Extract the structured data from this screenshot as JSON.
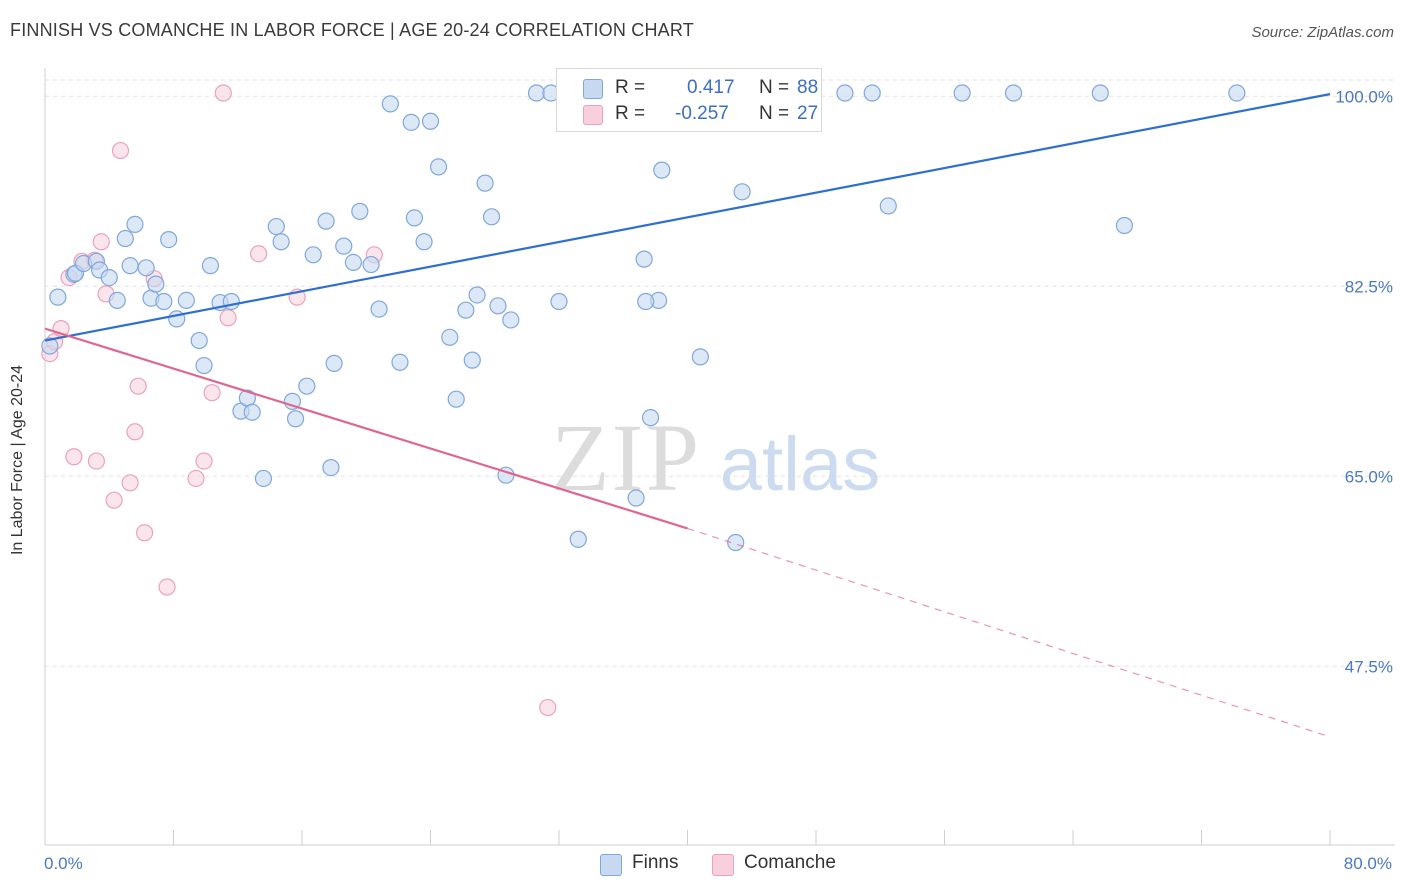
{
  "title": "FINNISH VS COMANCHE IN LABOR FORCE | AGE 20-24 CORRELATION CHART",
  "source": "Source: ZipAtlas.com",
  "watermark": {
    "zip": "ZIP",
    "atlas": "atlas"
  },
  "legend_stats": [
    {
      "r_label": "R =",
      "r_value": "0.417",
      "n_label": "N =",
      "n_value": "88"
    },
    {
      "r_label": "R =",
      "r_value": "-0.257",
      "n_label": "N =",
      "n_value": "27"
    }
  ],
  "bottom_legend": {
    "finns": "Finns",
    "comanche": "Comanche"
  },
  "colors": {
    "finns_fill": "#c6d9f1",
    "finns_stroke": "#7fa7dd",
    "finns_line": "#2e6fd0",
    "comanche_fill": "#f8cfdc",
    "comanche_stroke": "#eba2ba",
    "comanche_line": "#e06690"
  },
  "chart_data": {
    "type": "scatter",
    "title": "FINNISH VS COMANCHE IN LABOR FORCE | AGE 20-24 CORRELATION CHART",
    "xlabel": "",
    "ylabel": "In Labor Force | Age 20-24",
    "xlim": [
      0,
      80
    ],
    "ylim": [
      31.5,
      101.5
    ],
    "x_tick_labels": [
      "0.0%",
      "80.0%"
    ],
    "y_tick_labels": [
      "100.0%",
      "82.5%",
      "65.0%",
      "47.5%"
    ],
    "y_ticks": [
      100.0,
      82.5,
      65.0,
      47.5
    ],
    "grid": "horizontal dashed",
    "legend_placement": "top-center",
    "series": [
      {
        "name": "Finns",
        "points": [
          [
            0.3,
            77.0
          ],
          [
            0.8,
            81.5
          ],
          [
            1.8,
            83.6
          ],
          [
            1.9,
            83.7
          ],
          [
            2.4,
            84.6
          ],
          [
            3.2,
            84.8
          ],
          [
            3.4,
            84.0
          ],
          [
            4.0,
            83.3
          ],
          [
            4.5,
            81.2
          ],
          [
            5.0,
            86.9
          ],
          [
            5.6,
            88.2
          ],
          [
            5.3,
            84.4
          ],
          [
            6.3,
            84.2
          ],
          [
            6.6,
            81.4
          ],
          [
            6.9,
            82.7
          ],
          [
            7.7,
            86.8
          ],
          [
            8.2,
            79.5
          ],
          [
            8.8,
            81.2
          ],
          [
            9.6,
            77.5
          ],
          [
            9.9,
            75.2
          ],
          [
            10.3,
            84.4
          ],
          [
            10.9,
            81.0
          ],
          [
            11.6,
            81.1
          ],
          [
            12.2,
            71.0
          ],
          [
            12.6,
            72.2
          ],
          [
            12.9,
            70.9
          ],
          [
            13.6,
            64.8
          ],
          [
            14.4,
            88.0
          ],
          [
            14.7,
            86.6
          ],
          [
            15.4,
            71.9
          ],
          [
            15.6,
            70.3
          ],
          [
            16.3,
            73.3
          ],
          [
            16.7,
            85.4
          ],
          [
            17.5,
            88.5
          ],
          [
            17.8,
            65.8
          ],
          [
            18.0,
            75.4
          ],
          [
            18.6,
            86.2
          ],
          [
            19.2,
            84.7
          ],
          [
            19.6,
            89.4
          ],
          [
            20.3,
            84.5
          ],
          [
            20.8,
            80.4
          ],
          [
            21.5,
            99.3
          ],
          [
            22.1,
            75.5
          ],
          [
            22.8,
            97.6
          ],
          [
            23.0,
            88.8
          ],
          [
            23.6,
            86.6
          ],
          [
            24.0,
            97.7
          ],
          [
            24.5,
            93.5
          ],
          [
            25.2,
            77.8
          ],
          [
            25.6,
            72.1
          ],
          [
            26.2,
            80.3
          ],
          [
            26.6,
            75.7
          ],
          [
            26.9,
            81.7
          ],
          [
            27.4,
            92.0
          ],
          [
            27.8,
            88.9
          ],
          [
            28.2,
            80.7
          ],
          [
            28.7,
            65.1
          ],
          [
            29.0,
            79.4
          ],
          [
            30.6,
            100.3
          ],
          [
            31.5,
            100.3
          ],
          [
            32.0,
            81.1
          ],
          [
            33.0,
            100.3
          ],
          [
            33.6,
            100.3
          ],
          [
            33.2,
            59.2
          ],
          [
            35.0,
            100.3
          ],
          [
            36.8,
            63.0
          ],
          [
            37.7,
            70.4
          ],
          [
            37.3,
            85.0
          ],
          [
            38.4,
            93.2
          ],
          [
            38.2,
            81.2
          ],
          [
            38.9,
            100.3
          ],
          [
            40.8,
            76.0
          ],
          [
            41.7,
            100.3
          ],
          [
            42.9,
            100.3
          ],
          [
            43.0,
            58.9
          ],
          [
            43.4,
            91.2
          ],
          [
            44.6,
            100.3
          ],
          [
            46.9,
            100.3
          ],
          [
            49.8,
            100.3
          ],
          [
            51.5,
            100.3
          ],
          [
            52.5,
            89.9
          ],
          [
            57.1,
            100.3
          ],
          [
            60.3,
            100.3
          ],
          [
            65.7,
            100.3
          ],
          [
            67.2,
            88.1
          ],
          [
            74.2,
            100.3
          ],
          [
            37.4,
            81.1
          ],
          [
            7.4,
            81.1
          ]
        ],
        "trend": {
          "x0": 0,
          "y0": 77.5,
          "x1": 80,
          "y1": 100.2
        }
      },
      {
        "name": "Comanche",
        "points": [
          [
            0.3,
            76.3
          ],
          [
            0.6,
            77.4
          ],
          [
            1.0,
            78.6
          ],
          [
            1.5,
            83.3
          ],
          [
            1.8,
            66.8
          ],
          [
            2.3,
            84.8
          ],
          [
            3.1,
            84.9
          ],
          [
            3.2,
            66.4
          ],
          [
            3.5,
            86.6
          ],
          [
            3.8,
            81.8
          ],
          [
            4.3,
            62.8
          ],
          [
            4.7,
            95.0
          ],
          [
            5.3,
            64.4
          ],
          [
            5.6,
            69.1
          ],
          [
            5.8,
            73.3
          ],
          [
            6.2,
            59.8
          ],
          [
            6.8,
            83.2
          ],
          [
            7.6,
            54.8
          ],
          [
            9.4,
            64.8
          ],
          [
            9.9,
            66.4
          ],
          [
            10.4,
            72.7
          ],
          [
            11.1,
            100.3
          ],
          [
            11.4,
            79.6
          ],
          [
            13.3,
            85.5
          ],
          [
            15.7,
            81.5
          ],
          [
            20.5,
            85.4
          ],
          [
            31.3,
            43.7
          ]
        ],
        "trend": {
          "x0": 0,
          "y0": 78.6,
          "x1": 40,
          "y1": 60.2,
          "dash_to_x": 80,
          "dash_to_y": 41.0
        }
      }
    ]
  }
}
